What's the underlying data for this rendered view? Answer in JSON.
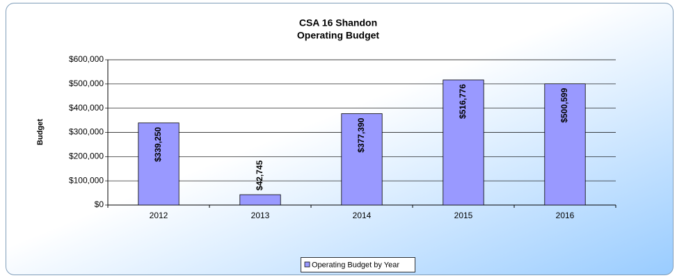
{
  "chart_data": {
    "type": "bar",
    "title": "CSA 16 Shandon",
    "subtitle": "Operating Budget",
    "y_label": "Budget",
    "categories": [
      "2012",
      "2013",
      "2014",
      "2015",
      "2016"
    ],
    "series": [
      {
        "name": "Operating Budget by Year",
        "color": "#9999ff",
        "values": [
          339250,
          42745,
          377390,
          516776,
          500599
        ],
        "value_labels": [
          "$339,250",
          "$42,745",
          "$377,390",
          "$516,776",
          "$500,599"
        ]
      }
    ],
    "ylim": [
      0,
      600000
    ],
    "yticks": [
      {
        "value": 0,
        "label": "$0"
      },
      {
        "value": 100000,
        "label": "$100,000"
      },
      {
        "value": 200000,
        "label": "$200,000"
      },
      {
        "value": 300000,
        "label": "$300,000"
      },
      {
        "value": 400000,
        "label": "$400,000"
      },
      {
        "value": 500000,
        "label": "$500,000"
      },
      {
        "value": 600000,
        "label": "$600,000"
      }
    ],
    "grid": true,
    "legend": "bottom"
  }
}
